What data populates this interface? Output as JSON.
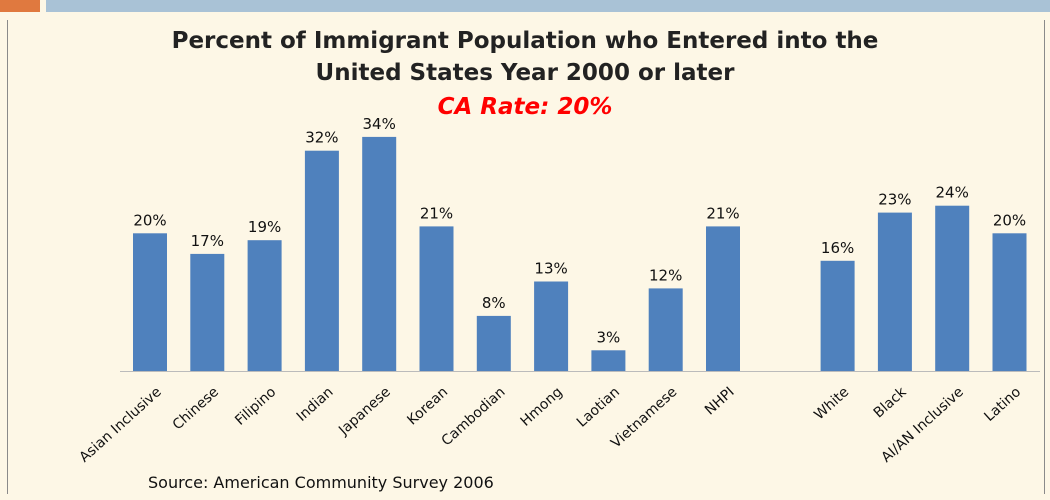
{
  "header": {
    "accent_color": "#e0793f",
    "bar_color": "#a9c2d6"
  },
  "chart_data": {
    "type": "bar",
    "title": "Percent of Immigrant Population who Entered into the United States Year 2000 or later",
    "title_lines": [
      "Percent of Immigrant Population who Entered into the",
      "United States Year 2000 or later"
    ],
    "subtitle": "CA Rate: 20%",
    "categories": [
      "Asian Inclusive",
      "Chinese",
      "Filipino",
      "Indian",
      "Japanese",
      "Korean",
      "Cambodian",
      "Hmong",
      "Laotian",
      "Vietnamese",
      "NHPI",
      "",
      "White",
      "Black",
      "AI/AN Inclusive",
      "Latino"
    ],
    "values": [
      20,
      17,
      19,
      32,
      34,
      21,
      8,
      13,
      3,
      12,
      21,
      null,
      16,
      23,
      24,
      20
    ],
    "labels": [
      "20%",
      "17%",
      "19%",
      "32%",
      "34%",
      "21%",
      "8%",
      "13%",
      "3%",
      "12%",
      "21%",
      "",
      "16%",
      "23%",
      "24%",
      "20%"
    ],
    "ylim": [
      0,
      35
    ],
    "grid": false,
    "bar_color": "#4f81bd",
    "source": "Source: American Community Survey 2006"
  }
}
